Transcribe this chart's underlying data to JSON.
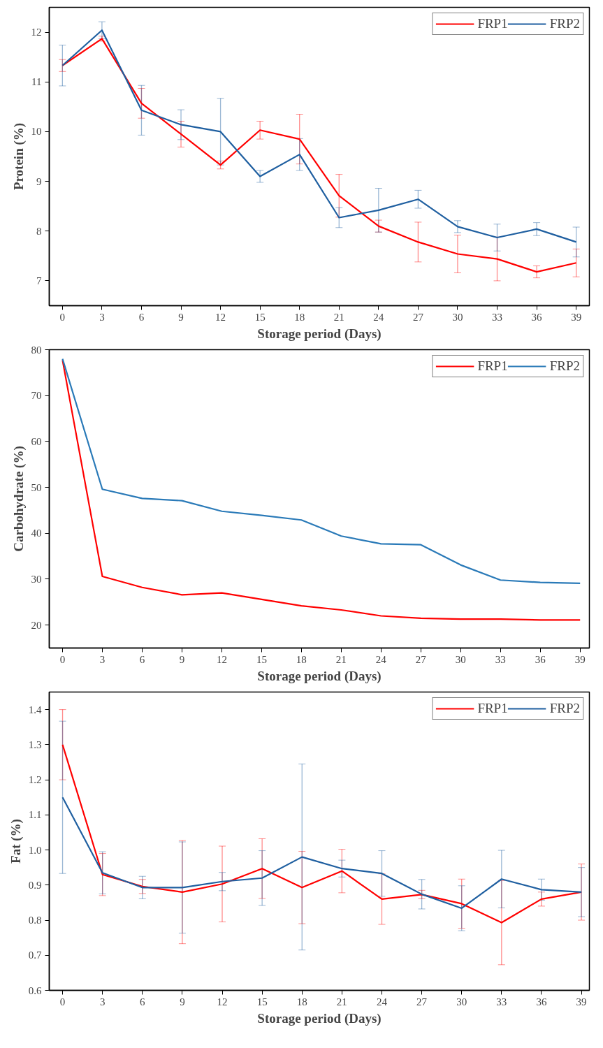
{
  "chart_data": [
    {
      "type": "line",
      "xlabel": "Storage period (Days)",
      "ylabel": "Protein (%)",
      "x": [
        0,
        3,
        6,
        9,
        12,
        15,
        18,
        21,
        24,
        27,
        30,
        33,
        36,
        39
      ],
      "xlim": [
        -1,
        40
      ],
      "xticks": [
        0,
        3,
        6,
        9,
        12,
        15,
        18,
        21,
        24,
        27,
        30,
        33,
        36,
        39
      ],
      "ylim": [
        6.5,
        12.5
      ],
      "yticks": [
        7,
        8,
        9,
        10,
        11,
        12
      ],
      "grid": false,
      "legend": "top right",
      "marker": "none",
      "line_style": "solid",
      "series": [
        {
          "name": "FRP1",
          "color": "#ff0000",
          "values": [
            11.33,
            11.87,
            10.57,
            9.95,
            9.33,
            10.03,
            9.85,
            8.71,
            8.1,
            7.78,
            7.54,
            7.44,
            7.18,
            7.36
          ],
          "errors": [
            0.12,
            0.05,
            0.3,
            0.26,
            0.08,
            0.18,
            0.5,
            0.43,
            0.12,
            0.4,
            0.38,
            0.44,
            0.12,
            0.28
          ]
        },
        {
          "name": "FRP2",
          "color": "#1f5fa0",
          "values": [
            11.33,
            12.04,
            10.43,
            10.14,
            10.0,
            9.1,
            9.54,
            8.27,
            8.42,
            8.64,
            8.09,
            7.87,
            8.04,
            7.78
          ],
          "errors": [
            0.41,
            0.17,
            0.5,
            0.3,
            0.67,
            0.12,
            0.32,
            0.2,
            0.44,
            0.18,
            0.12,
            0.27,
            0.13,
            0.3
          ]
        }
      ]
    },
    {
      "type": "line",
      "xlabel": "Storage period (Days)",
      "ylabel": "Carbohydrate (%)",
      "x": [
        0,
        3,
        6,
        9,
        12,
        15,
        18,
        21,
        24,
        27,
        30,
        33,
        36,
        39
      ],
      "xlim": [
        -1,
        39.7
      ],
      "xticks": [
        0,
        3,
        6,
        9,
        12,
        15,
        18,
        21,
        24,
        27,
        30,
        33,
        36,
        39
      ],
      "ylim": [
        15,
        80
      ],
      "yticks": [
        20,
        30,
        40,
        50,
        60,
        70,
        80
      ],
      "grid": false,
      "legend": "top right",
      "marker": "none",
      "line_style": "solid",
      "series": [
        {
          "name": "FRP1",
          "color": "#ff0000",
          "values": [
            77.7,
            30.6,
            28.2,
            26.6,
            27.0,
            25.6,
            24.2,
            23.3,
            22.0,
            21.5,
            21.3,
            21.3,
            21.1,
            21.1
          ]
        },
        {
          "name": "FRP2",
          "color": "#2a7ab8",
          "values": [
            78.0,
            49.6,
            47.6,
            47.1,
            44.8,
            43.9,
            42.9,
            39.4,
            37.7,
            37.5,
            33.1,
            29.8,
            29.3,
            29.1
          ]
        }
      ]
    },
    {
      "type": "line",
      "xlabel": "Storage period (Days)",
      "ylabel": "Fat (%)",
      "x": [
        0,
        3,
        6,
        9,
        12,
        15,
        18,
        21,
        24,
        27,
        30,
        33,
        36,
        39
      ],
      "xlim": [
        -1,
        39.6
      ],
      "xticks": [
        0,
        3,
        6,
        9,
        12,
        15,
        18,
        21,
        24,
        27,
        30,
        33,
        36,
        39
      ],
      "ylim": [
        0.6,
        1.45
      ],
      "yticks": [
        {
          "value": 0.6,
          "label": "0.6"
        },
        {
          "value": 0.7,
          "label": "0.7"
        },
        {
          "value": 0.8,
          "label": "0.8"
        },
        {
          "value": 0.9,
          "label": "0.9"
        },
        {
          "value": 1.0,
          "label": "1.0"
        },
        {
          "value": 1.1,
          "label": "1.1"
        },
        {
          "value": 1.2,
          "label": "1.2"
        },
        {
          "value": 1.3,
          "label": "1.3"
        },
        {
          "value": 1.4,
          "label": "1.4"
        }
      ],
      "grid": false,
      "legend": "top right",
      "marker": "none",
      "line_style": "solid",
      "series": [
        {
          "name": "FRP1",
          "color": "#ff0000",
          "values": [
            1.3,
            0.93,
            0.896,
            0.88,
            0.903,
            0.947,
            0.893,
            0.94,
            0.86,
            0.873,
            0.847,
            0.793,
            0.86,
            0.88
          ],
          "errors": [
            0.1,
            0.06,
            0.02,
            0.147,
            0.108,
            0.085,
            0.103,
            0.062,
            0.072,
            0.012,
            0.07,
            0.12,
            0.02,
            0.08
          ]
        },
        {
          "name": "FRP2",
          "color": "#1f5fa0",
          "values": [
            1.15,
            0.935,
            0.893,
            0.893,
            0.91,
            0.92,
            0.98,
            0.947,
            0.933,
            0.874,
            0.834,
            0.917,
            0.887,
            0.88
          ],
          "errors": [
            0.217,
            0.06,
            0.032,
            0.13,
            0.026,
            0.078,
            0.265,
            0.024,
            0.065,
            0.042,
            0.064,
            0.082,
            0.03,
            0.07
          ]
        }
      ]
    }
  ]
}
